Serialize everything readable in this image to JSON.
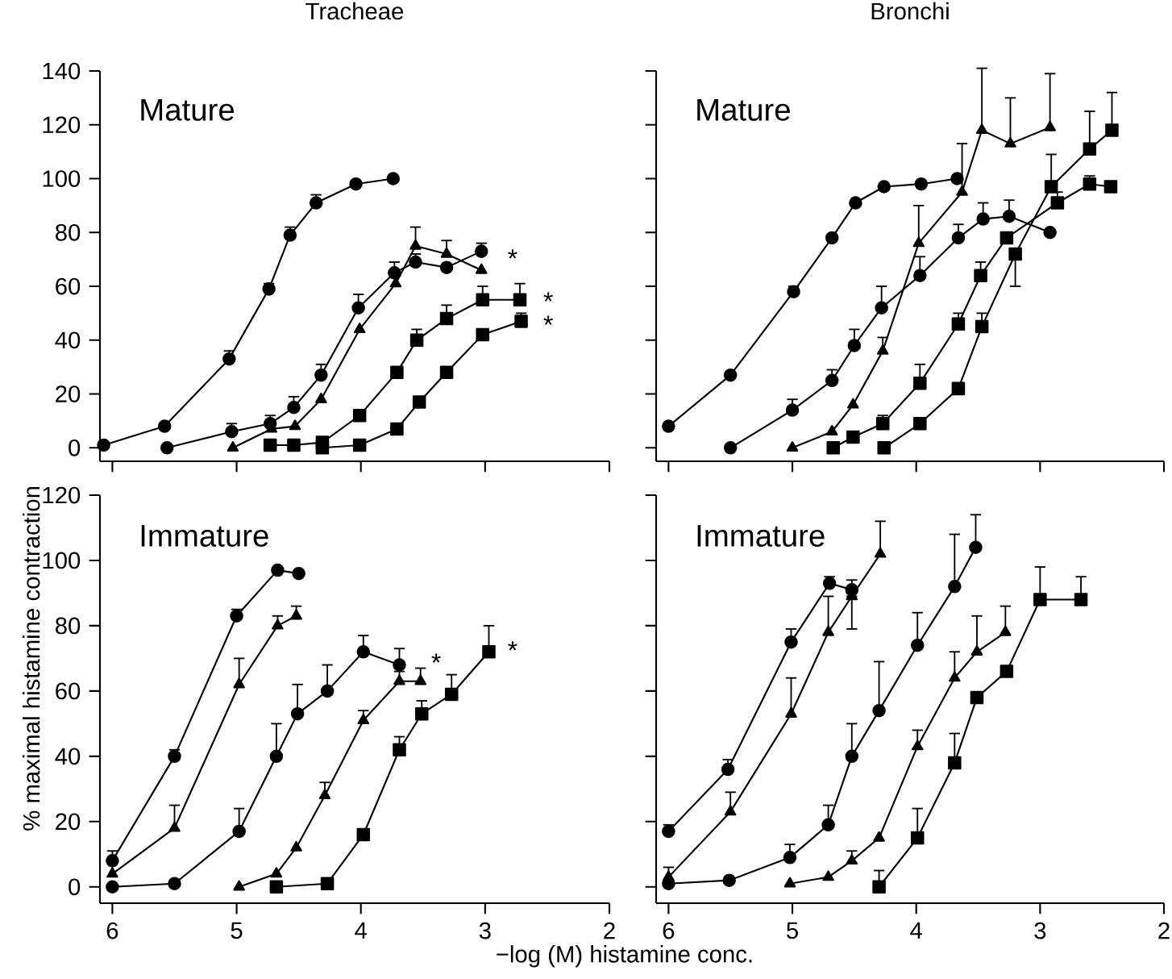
{
  "chart_data": [
    {
      "type": "line",
      "title": "Tracheae",
      "xlim": [
        6.1,
        2
      ],
      "ylim": [
        -5,
        140
      ],
      "xticks": [
        6,
        5,
        4,
        3,
        2
      ],
      "yticks": [
        0,
        20,
        40,
        60,
        80,
        100,
        120,
        140
      ],
      "tick_labels": "y",
      "annotations": [
        "Mature",
        "*",
        "*",
        "*"
      ],
      "series": [
        {
          "color": "#000000",
          "marker": "circle",
          "x": [
            6.07,
            5.58,
            5.06,
            4.74,
            4.57,
            4.36,
            4.04,
            3.74
          ],
          "values": [
            1,
            8,
            33,
            59,
            79,
            91,
            98,
            100
          ],
          "errors": [
            null,
            null,
            [
              33,
              36
            ],
            [
              59,
              61
            ],
            [
              79,
              82
            ],
            [
              91,
              94
            ],
            null,
            null
          ]
        },
        {
          "color": "#000000",
          "marker": "circle",
          "x": [
            5.56,
            5.04,
            4.73,
            4.54,
            4.32,
            4.02,
            3.73,
            3.56,
            3.31,
            3.03
          ],
          "values": [
            0,
            6,
            9,
            15,
            27,
            52,
            65,
            69,
            67,
            73
          ],
          "errors": [
            null,
            [
              6,
              9
            ],
            [
              9,
              12
            ],
            [
              15,
              19
            ],
            [
              27,
              31
            ],
            [
              52,
              57
            ],
            [
              65,
              69
            ],
            [
              69,
              72
            ],
            null,
            [
              73,
              76
            ]
          ]
        },
        {
          "color": "#000000",
          "marker": "triangle",
          "x": [
            5.03,
            4.72,
            4.53,
            4.32,
            4.01,
            3.72,
            3.56,
            3.31,
            3.03
          ],
          "values": [
            0,
            7,
            8,
            18,
            44,
            61,
            75,
            72,
            66
          ],
          "errors": [
            null,
            null,
            null,
            null,
            null,
            [
              61,
              64
            ],
            [
              75,
              82
            ],
            [
              72,
              77
            ],
            null
          ]
        },
        {
          "color": "#000000",
          "marker": "square",
          "x": [
            4.73,
            4.54,
            4.31,
            4.01,
            3.71,
            3.55,
            3.31,
            3.02,
            2.72
          ],
          "values": [
            1,
            1,
            2,
            12,
            28,
            40,
            48,
            55,
            55
          ],
          "errors": [
            null,
            null,
            null,
            null,
            null,
            [
              40,
              44
            ],
            [
              48,
              53
            ],
            [
              55,
              60
            ],
            [
              55,
              61
            ]
          ]
        },
        {
          "color": "#000000",
          "marker": "square",
          "x": [
            4.31,
            4.01,
            3.71,
            3.53,
            3.31,
            3.02,
            2.71
          ],
          "values": [
            0,
            1,
            7,
            17,
            28,
            42,
            47
          ],
          "errors": [
            null,
            null,
            null,
            null,
            null,
            null,
            [
              47,
              50
            ]
          ]
        }
      ]
    },
    {
      "type": "line",
      "title": "Bronchi",
      "xlim": [
        6.1,
        2
      ],
      "ylim": [
        -5,
        140
      ],
      "xticks": [
        6,
        5,
        4,
        3,
        2
      ],
      "yticks": [
        0,
        20,
        40,
        60,
        80,
        100,
        120,
        140
      ],
      "tick_labels": false,
      "annotations": [
        "Mature"
      ],
      "series": [
        {
          "color": "#000000",
          "marker": "circle",
          "x": [
            6.0,
            5.5,
            4.99,
            4.68,
            4.49,
            4.26,
            3.96,
            3.67
          ],
          "values": [
            8,
            27,
            58,
            78,
            91,
            97,
            98,
            100
          ],
          "errors": [
            null,
            null,
            [
              58,
              60
            ],
            null,
            null,
            null,
            null,
            null
          ]
        },
        {
          "color": "#000000",
          "marker": "circle",
          "x": [
            5.5,
            5.0,
            4.68,
            4.5,
            4.28,
            3.97,
            3.66,
            3.46,
            3.25,
            2.92
          ],
          "values": [
            0,
            14,
            25,
            38,
            52,
            64,
            78,
            85,
            86,
            80
          ],
          "errors": [
            null,
            [
              14,
              18
            ],
            [
              25,
              29
            ],
            [
              38,
              44
            ],
            [
              52,
              60
            ],
            [
              64,
              71
            ],
            [
              78,
              83
            ],
            [
              85,
              91
            ],
            [
              86,
              92
            ],
            null
          ]
        },
        {
          "color": "#000000",
          "marker": "triangle",
          "x": [
            5.0,
            4.68,
            4.51,
            4.27,
            3.98,
            3.63,
            3.47,
            3.24,
            2.92
          ],
          "values": [
            0,
            6,
            16,
            36,
            76,
            95,
            118,
            113,
            119
          ],
          "errors": [
            null,
            null,
            null,
            [
              36,
              41
            ],
            [
              76,
              90
            ],
            [
              95,
              113
            ],
            [
              118,
              141
            ],
            [
              113,
              130
            ],
            [
              119,
              139
            ]
          ]
        },
        {
          "color": "#000000",
          "marker": "square",
          "x": [
            4.67,
            4.51,
            4.27,
            3.97,
            3.66,
            3.48,
            3.27,
            2.86,
            2.6,
            2.43
          ],
          "values": [
            0,
            4,
            9,
            24,
            46,
            64,
            78,
            91,
            98,
            97
          ],
          "errors": [
            null,
            null,
            [
              9,
              12
            ],
            [
              24,
              31
            ],
            [
              46,
              50
            ],
            [
              64,
              69
            ],
            null,
            [
              91,
              95
            ],
            [
              98,
              101
            ],
            null
          ]
        },
        {
          "color": "#000000",
          "marker": "square",
          "x": [
            4.26,
            3.97,
            3.66,
            3.47,
            3.2,
            2.91,
            2.6,
            2.42
          ],
          "values": [
            0,
            9,
            22,
            45,
            72,
            97,
            111,
            118
          ],
          "errors": [
            null,
            null,
            null,
            [
              45,
              50
            ],
            [
              60,
              72
            ],
            [
              97,
              109
            ],
            [
              111,
              125
            ],
            [
              118,
              132
            ]
          ]
        }
      ]
    },
    {
      "type": "line",
      "xlabel": "−log (M) histamine conc.",
      "ylabel": "% maximal histamine contraction",
      "xlim": [
        6.1,
        2
      ],
      "ylim": [
        -5,
        120
      ],
      "xticks": [
        6,
        5,
        4,
        3,
        2
      ],
      "yticks": [
        0,
        20,
        40,
        60,
        80,
        100,
        120
      ],
      "annotations": [
        "Immature",
        "*",
        "*"
      ],
      "series": [
        {
          "color": "#000000",
          "marker": "circle",
          "x": [
            6.0,
            5.5,
            5.0,
            4.67,
            4.5
          ],
          "values": [
            8,
            40,
            83,
            97,
            96
          ],
          "errors": [
            [
              8,
              11
            ],
            [
              40,
              42
            ],
            [
              83,
              85
            ],
            null,
            null
          ]
        },
        {
          "color": "#000000",
          "marker": "triangle",
          "x": [
            6.0,
            5.5,
            4.98,
            4.67,
            4.52
          ],
          "values": [
            4,
            18,
            62,
            80,
            83
          ],
          "errors": [
            null,
            [
              18,
              25
            ],
            [
              62,
              70
            ],
            [
              80,
              83
            ],
            [
              83,
              86
            ]
          ]
        },
        {
          "color": "#000000",
          "marker": "circle",
          "x": [
            6.0,
            5.5,
            4.98,
            4.68,
            4.51,
            4.27,
            3.98,
            3.69
          ],
          "values": [
            0,
            1,
            17,
            40,
            53,
            60,
            72,
            68
          ],
          "errors": [
            null,
            null,
            [
              17,
              24
            ],
            [
              40,
              50
            ],
            [
              53,
              62
            ],
            [
              60,
              68
            ],
            [
              72,
              77
            ],
            [
              68,
              73
            ]
          ]
        },
        {
          "color": "#000000",
          "marker": "triangle",
          "x": [
            4.98,
            4.68,
            4.52,
            4.29,
            3.98,
            3.69,
            3.52
          ],
          "values": [
            0,
            4,
            12,
            28,
            51,
            63,
            63
          ],
          "errors": [
            null,
            null,
            null,
            [
              28,
              32
            ],
            [
              51,
              54
            ],
            [
              63,
              66
            ],
            [
              63,
              67
            ]
          ]
        },
        {
          "color": "#000000",
          "marker": "square",
          "x": [
            4.68,
            4.27,
            3.98,
            3.69,
            3.51,
            3.27,
            2.97
          ],
          "values": [
            0,
            1,
            16,
            42,
            53,
            59,
            72
          ],
          "errors": [
            null,
            null,
            null,
            [
              42,
              46
            ],
            [
              53,
              57
            ],
            [
              59,
              65
            ],
            [
              72,
              80
            ]
          ]
        }
      ]
    },
    {
      "type": "line",
      "xlim": [
        6.1,
        2
      ],
      "ylim": [
        -5,
        120
      ],
      "xticks": [
        6,
        5,
        4,
        3,
        2
      ],
      "yticks": [
        0,
        20,
        40,
        60,
        80,
        100,
        120
      ],
      "tick_labels": "x",
      "annotations": [
        "Immature"
      ],
      "series": [
        {
          "color": "#000000",
          "marker": "circle",
          "x": [
            6.0,
            5.52,
            5.01,
            4.7,
            4.52
          ],
          "values": [
            17,
            36,
            75,
            93,
            91
          ],
          "errors": [
            [
              17,
              19
            ],
            [
              36,
              39
            ],
            [
              75,
              79
            ],
            [
              93,
              95
            ],
            [
              91,
              94
            ]
          ]
        },
        {
          "color": "#000000",
          "marker": "triangle",
          "x": [
            6.0,
            5.5,
            5.01,
            4.71,
            4.52,
            4.29
          ],
          "values": [
            3,
            23,
            53,
            78,
            89,
            102
          ],
          "errors": [
            [
              3,
              6
            ],
            [
              23,
              29
            ],
            [
              53,
              64
            ],
            [
              78,
              89
            ],
            [
              79,
              89
            ],
            [
              102,
              112
            ]
          ]
        },
        {
          "color": "#000000",
          "marker": "circle",
          "x": [
            6.0,
            5.51,
            5.02,
            4.71,
            4.52,
            4.3,
            3.99,
            3.69,
            3.52
          ],
          "values": [
            1,
            2,
            9,
            19,
            40,
            54,
            74,
            92,
            104
          ],
          "errors": [
            null,
            null,
            [
              9,
              13
            ],
            [
              19,
              25
            ],
            [
              40,
              50
            ],
            [
              54,
              69
            ],
            [
              74,
              84
            ],
            [
              92,
              108
            ],
            [
              104,
              114
            ]
          ]
        },
        {
          "color": "#000000",
          "marker": "triangle",
          "x": [
            5.02,
            4.71,
            4.52,
            4.3,
            3.99,
            3.69,
            3.51,
            3.28
          ],
          "values": [
            1,
            3,
            8,
            15,
            43,
            64,
            72,
            78
          ],
          "errors": [
            null,
            null,
            [
              8,
              11
            ],
            null,
            [
              43,
              48
            ],
            [
              64,
              72
            ],
            [
              72,
              83
            ],
            [
              78,
              86
            ]
          ]
        },
        {
          "color": "#000000",
          "marker": "square",
          "x": [
            4.3,
            3.99,
            3.69,
            3.51,
            3.27,
            3.0,
            2.67
          ],
          "values": [
            0,
            15,
            38,
            58,
            66,
            88,
            88
          ],
          "errors": [
            [
              0,
              5
            ],
            [
              15,
              24
            ],
            [
              38,
              47
            ],
            null,
            null,
            [
              88,
              98
            ],
            [
              88,
              95
            ]
          ]
        }
      ]
    }
  ]
}
